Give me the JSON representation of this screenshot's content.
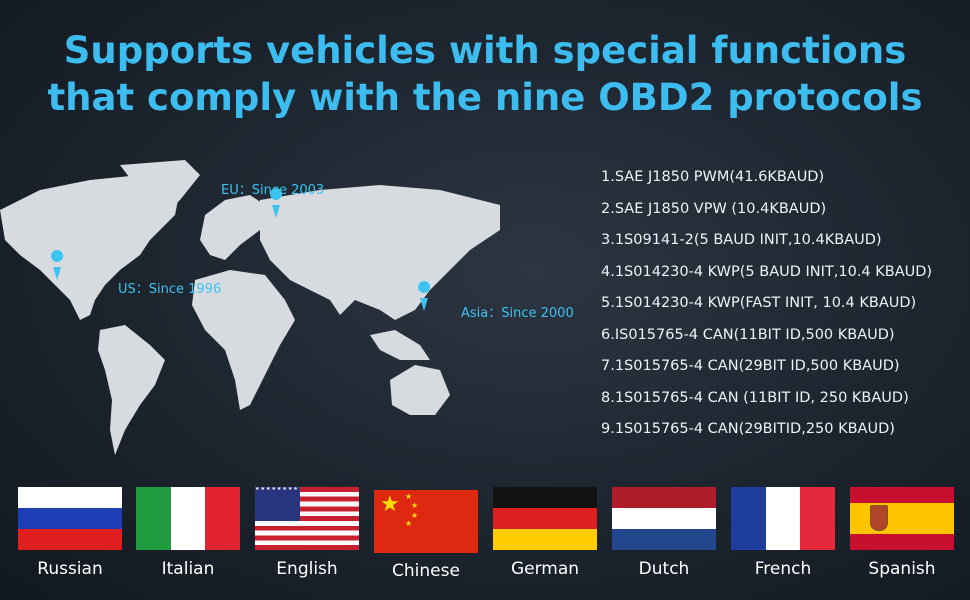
{
  "headline": {
    "line1": "Supports vehicles with special functions",
    "line2": "that comply with the nine OBD2 protocols",
    "color": "#3cbcef"
  },
  "map": {
    "markers": [
      {
        "region": "EU",
        "label": "EU：Since 2003"
      },
      {
        "region": "US",
        "label": "US：Since 1996"
      },
      {
        "region": "Asia",
        "label": "Asia：Since 2000"
      }
    ],
    "marker_icon": "map-pin-icon",
    "marker_color": "#3cc3f0"
  },
  "protocols": [
    "1.SAE J1850 PWM(41.6KBAUD)",
    "2.SAE J1850 VPW (10.4KBAUD)",
    "3.1S09141-2(5 BAUD INIT,10.4KBAUD)",
    "4.1S014230-4 KWP(5 BAUD INIT,10.4 KBAUD)",
    "5.1S014230-4 KWP(FAST INIT, 10.4 KBAUD)",
    "6.IS015765-4 CAN(11BIT ID,500 KBAUD)",
    "7.1S015765-4 CAN(29BIT ID,500 KBAUD)",
    "8.1S015765-4 CAN (11BIT ID, 250 KBAUD)",
    "9.1S015765-4 CAN(29BITID,250 KBAUD)"
  ],
  "languages": [
    {
      "label": "Russian",
      "flag": "russia-flag"
    },
    {
      "label": "Italian",
      "flag": "italy-flag"
    },
    {
      "label": "English",
      "flag": "usa-flag"
    },
    {
      "label": "Chinese",
      "flag": "china-flag"
    },
    {
      "label": "German",
      "flag": "germany-flag"
    },
    {
      "label": "Dutch",
      "flag": "netherlands-flag"
    },
    {
      "label": "French",
      "flag": "france-flag"
    },
    {
      "label": "Spanish",
      "flag": "spain-flag"
    }
  ]
}
